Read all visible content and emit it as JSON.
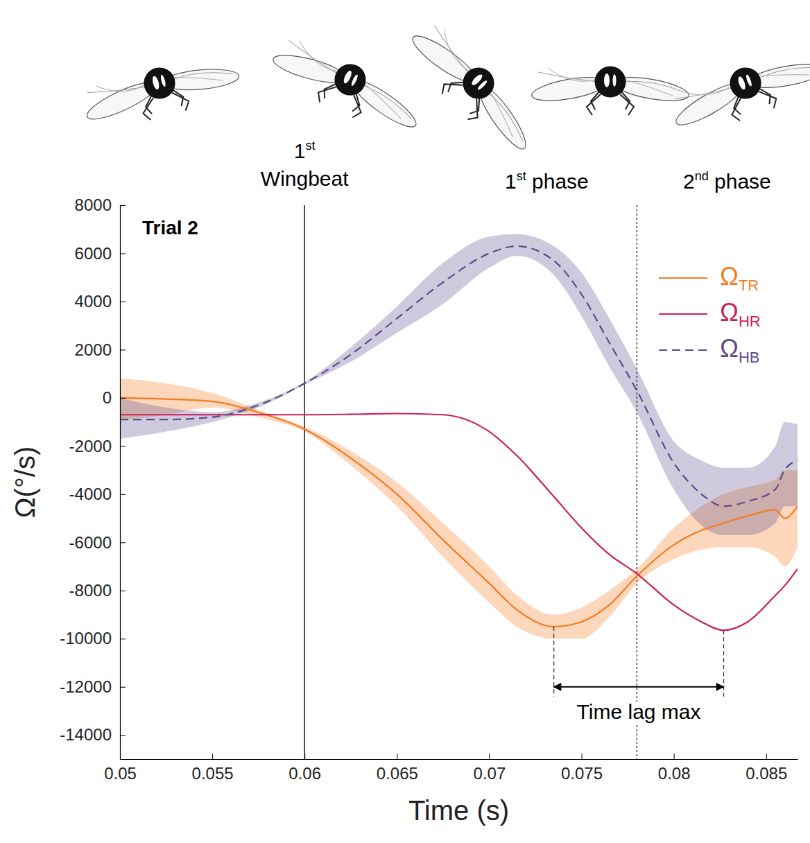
{
  "chart_data": {
    "type": "line",
    "title": "Trial 2",
    "x_label": "Time (s)",
    "y_label": "Ω(°/s)",
    "x": [
      0.05,
      0.0525,
      0.055,
      0.0575,
      0.06,
      0.0625,
      0.065,
      0.0675,
      0.07,
      0.0715,
      0.0735,
      0.075,
      0.0765,
      0.078,
      0.08,
      0.0815,
      0.0827,
      0.084,
      0.0855,
      0.086,
      0.0867
    ],
    "series": [
      {
        "name": "ΩTR",
        "color": "#f47c20",
        "line_style": "solid",
        "values": [
          0,
          -50,
          -150,
          -600,
          -1300,
          -2500,
          -4000,
          -5900,
          -7700,
          -8800,
          -9500,
          -9300,
          -8600,
          -7400,
          -6100,
          -5500,
          -5200,
          -4900,
          -4650,
          -5000,
          -4500
        ],
        "lower": [
          -900,
          -700,
          -400,
          -800,
          -1400,
          -2800,
          -4500,
          -6600,
          -8500,
          -9500,
          -10000,
          -10000,
          -9100,
          -7700,
          -6700,
          -6300,
          -6200,
          -6200,
          -6600,
          -7000,
          -6200
        ],
        "upper": [
          800,
          600,
          200,
          -500,
          -1200,
          -2200,
          -3500,
          -5200,
          -7000,
          -8200,
          -9000,
          -8700,
          -8000,
          -7100,
          -5400,
          -4500,
          -4000,
          -3700,
          -3400,
          -3000,
          -3000
        ]
      },
      {
        "name": "ΩHR",
        "color": "#cc1f5a",
        "line_style": "solid",
        "values": [
          -700,
          -700,
          -700,
          -700,
          -700,
          -680,
          -650,
          -700,
          -1400,
          -2400,
          -4100,
          -5400,
          -6500,
          -7300,
          -8600,
          -9300,
          -9650,
          -9300,
          -8200,
          -7800,
          -7100
        ]
      },
      {
        "name": "ΩHB",
        "color": "#5e4b8b",
        "line_style": "dashed",
        "values": [
          -900,
          -900,
          -800,
          -300,
          600,
          1800,
          3300,
          4800,
          6000,
          6300,
          5700,
          4300,
          2300,
          300,
          -2700,
          -4000,
          -4500,
          -4300,
          -3800,
          -3000,
          -2600
        ],
        "lower": [
          -1700,
          -1400,
          -1000,
          -400,
          550,
          1500,
          2700,
          3900,
          5400,
          5900,
          5100,
          3400,
          1300,
          -600,
          -3800,
          -5300,
          -5700,
          -5700,
          -5200,
          -4500,
          -4500
        ],
        "upper": [
          0,
          -400,
          -600,
          -200,
          650,
          2100,
          3800,
          5600,
          6700,
          6800,
          6300,
          5200,
          3300,
          1200,
          -1800,
          -2600,
          -2900,
          -2900,
          -2000,
          -1000,
          -1100
        ]
      }
    ],
    "events": {
      "wingbeat": {
        "x": 0.06,
        "label": "1st Wingbeat"
      },
      "phase_boundary": {
        "x": 0.078,
        "labels": [
          "1st phase",
          "2nd phase"
        ]
      },
      "time_lag": {
        "x_start": 0.0735,
        "x_end": 0.0827,
        "y": -12000,
        "y_end": -12400,
        "label": "Time lag max"
      }
    },
    "xlim": [
      0.05,
      0.0867
    ],
    "xticks": [
      0.05,
      0.055,
      0.06,
      0.065,
      0.07,
      0.075,
      0.08,
      0.085
    ],
    "ylim": [
      -15000,
      8000
    ],
    "yticks": [
      -14000,
      -12000,
      -10000,
      -8000,
      -6000,
      -4000,
      -2000,
      0,
      2000,
      4000,
      6000,
      8000
    ],
    "grid": false,
    "legend": "upper right"
  }
}
